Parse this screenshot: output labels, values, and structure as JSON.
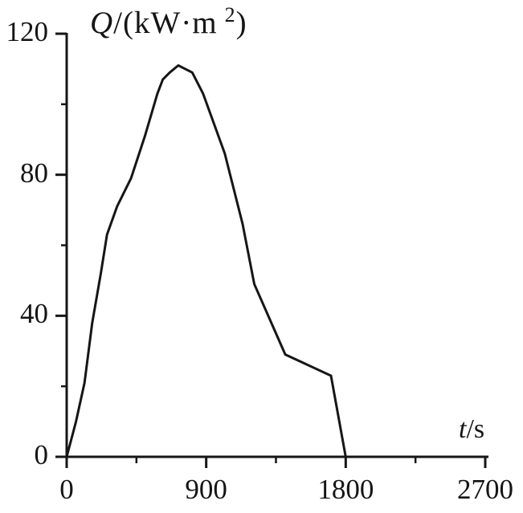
{
  "chart_data": {
    "type": "line",
    "title": "",
    "y_title": {
      "variable": "Q",
      "mid": "/(kW·m",
      "sup": "2",
      "close": ")"
    },
    "x_title": {
      "variable": "t",
      "rest": "/s"
    },
    "xlabel": "t/s",
    "ylabel": "Q/(kW·m²)",
    "xlim": [
      0,
      2700
    ],
    "ylim": [
      0,
      120
    ],
    "x_ticks": [
      0,
      900,
      1800,
      2700
    ],
    "x_minor_ticks": [
      450,
      1350,
      2250
    ],
    "y_ticks": [
      0,
      40,
      80,
      120
    ],
    "y_minor_ticks": [
      20,
      60,
      100
    ],
    "x_tick_labels": [
      "0",
      "900",
      "1800",
      "2700"
    ],
    "y_tick_labels": [
      "0",
      "40",
      "80",
      "120"
    ],
    "grid": false,
    "legend": false,
    "series": [
      {
        "name": "heat-flux-curve",
        "points": [
          [
            0,
            0
          ],
          [
            60,
            10
          ],
          [
            115,
            21
          ],
          [
            165,
            38
          ],
          [
            220,
            52
          ],
          [
            260,
            63
          ],
          [
            325,
            71
          ],
          [
            415,
            79
          ],
          [
            505,
            91
          ],
          [
            585,
            103
          ],
          [
            620,
            107
          ],
          [
            665,
            109
          ],
          [
            720,
            111
          ],
          [
            810,
            109
          ],
          [
            880,
            103
          ],
          [
            1020,
            86
          ],
          [
            1135,
            66
          ],
          [
            1210,
            49
          ],
          [
            1410,
            29
          ],
          [
            1705,
            23
          ],
          [
            1800,
            0
          ]
        ]
      }
    ],
    "line_color": "#161616",
    "background_color": "#ffffff"
  }
}
